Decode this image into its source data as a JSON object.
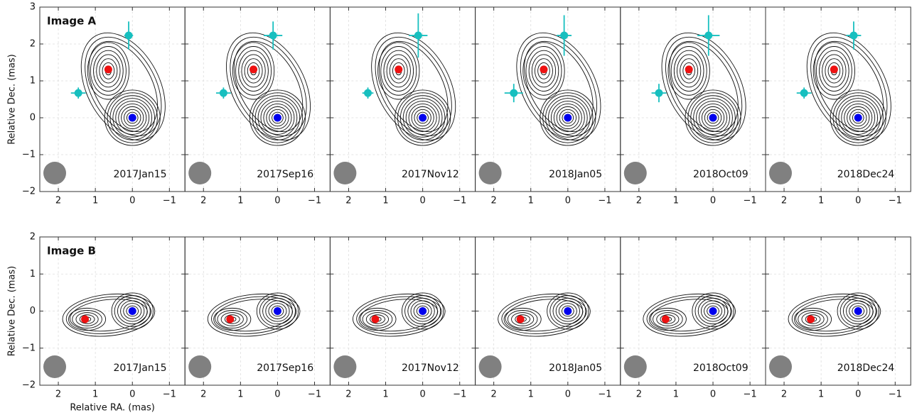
{
  "chart_data": [
    {
      "type": "scatter",
      "label": "Image A",
      "annotation": "2017Jan15",
      "ylabel": "Relative Dec. (mas)",
      "xlim": [
        2.5,
        -1.42
      ],
      "ylim": [
        -2,
        3
      ],
      "xticks": [
        2,
        1,
        0,
        {
          "value": -1,
          "label": "−1"
        }
      ],
      "yticks": [
        {
          "value": -2,
          "label": "−2"
        },
        {
          "value": -1,
          "label": "−1"
        },
        0,
        1,
        2,
        3
      ],
      "grid": true,
      "series": [
        {
          "color": "#ee1111",
          "x": [
            0.65
          ],
          "values": [
            1.31
          ]
        },
        {
          "color": "#0000ee",
          "x": [
            0
          ],
          "values": [
            0
          ]
        },
        {
          "color": "#17bfbf",
          "x": [
            0.1,
            1.46
          ],
          "values": [
            2.23,
            0.67
          ],
          "xerr": [
            0.12,
            0.2
          ],
          "yerr": [
            0.38,
            0.15
          ]
        }
      ]
    },
    {
      "type": "scatter",
      "annotation": "2017Sep16",
      "xlim": [
        2.5,
        -1.42
      ],
      "ylim": [
        -2,
        3
      ],
      "sharey": true,
      "xticks": [
        2,
        1,
        0,
        {
          "value": -1,
          "label": "−1"
        }
      ],
      "grid": true,
      "series": [
        {
          "color": "#ee1111",
          "x": [
            0.65
          ],
          "values": [
            1.31
          ]
        },
        {
          "color": "#0000ee",
          "x": [
            0
          ],
          "values": [
            0
          ]
        },
        {
          "color": "#17bfbf",
          "x": [
            0.12,
            1.46
          ],
          "values": [
            2.23,
            0.67
          ],
          "xerr": [
            0.25,
            0.2
          ],
          "yerr": [
            0.38,
            0.15
          ]
        }
      ]
    },
    {
      "type": "scatter",
      "annotation": "2017Nov12",
      "xlim": [
        2.5,
        -1.42
      ],
      "ylim": [
        -2,
        3
      ],
      "sharey": true,
      "xticks": [
        2,
        1,
        0,
        {
          "value": -1,
          "label": "−1"
        }
      ],
      "grid": true,
      "series": [
        {
          "color": "#ee1111",
          "x": [
            0.65
          ],
          "values": [
            1.31
          ]
        },
        {
          "color": "#0000ee",
          "x": [
            0
          ],
          "values": [
            0
          ]
        },
        {
          "color": "#17bfbf",
          "x": [
            0.12,
            1.48
          ],
          "values": [
            2.23,
            0.67
          ],
          "xerr": [
            0.25,
            0.15
          ],
          "yerr": [
            0.6,
            0.15
          ]
        }
      ]
    },
    {
      "type": "scatter",
      "annotation": "2018Jan05",
      "xlim": [
        2.5,
        -1.42
      ],
      "ylim": [
        -2,
        3
      ],
      "sharey": true,
      "xticks": [
        2,
        1,
        0,
        {
          "value": -1,
          "label": "−1"
        }
      ],
      "grid": true,
      "series": [
        {
          "color": "#ee1111",
          "x": [
            0.65
          ],
          "values": [
            1.31
          ]
        },
        {
          "color": "#0000ee",
          "x": [
            0
          ],
          "values": [
            0
          ]
        },
        {
          "color": "#17bfbf",
          "x": [
            0.1,
            1.46
          ],
          "values": [
            2.23,
            0.67
          ],
          "xerr": [
            0.2,
            0.25
          ],
          "yerr": [
            0.55,
            0.25
          ]
        }
      ]
    },
    {
      "type": "scatter",
      "annotation": "2018Oct09",
      "xlim": [
        2.5,
        -1.42
      ],
      "ylim": [
        -2,
        3
      ],
      "sharey": true,
      "xticks": [
        2,
        1,
        0,
        {
          "value": -1,
          "label": "−1"
        }
      ],
      "grid": true,
      "series": [
        {
          "color": "#ee1111",
          "x": [
            0.65
          ],
          "values": [
            1.31
          ]
        },
        {
          "color": "#0000ee",
          "x": [
            0
          ],
          "values": [
            0
          ]
        },
        {
          "color": "#17bfbf",
          "x": [
            0.12,
            1.46
          ],
          "values": [
            2.23,
            0.67
          ],
          "xerr": [
            0.3,
            0.2
          ],
          "yerr": [
            0.55,
            0.25
          ]
        }
      ]
    },
    {
      "type": "scatter",
      "annotation": "2018Dec24",
      "xlim": [
        2.5,
        -1.42
      ],
      "ylim": [
        -2,
        3
      ],
      "sharey": true,
      "xticks": [
        2,
        1,
        0,
        {
          "value": -1,
          "label": "−1"
        }
      ],
      "grid": true,
      "series": [
        {
          "color": "#ee1111",
          "x": [
            0.65
          ],
          "values": [
            1.31
          ]
        },
        {
          "color": "#0000ee",
          "x": [
            0
          ],
          "values": [
            0
          ]
        },
        {
          "color": "#17bfbf",
          "x": [
            0.12,
            1.46
          ],
          "values": [
            2.23,
            0.67
          ],
          "xerr": [
            0.2,
            0.2
          ],
          "yerr": [
            0.38,
            0.15
          ]
        }
      ]
    },
    {
      "type": "scatter",
      "label": "Image B",
      "annotation": "2017Jan15",
      "ylabel": "Relative Dec. (mas)",
      "xlabel": "Relative RA. (mas)",
      "xlim": [
        2.5,
        -1.42
      ],
      "ylim": [
        -2,
        2
      ],
      "xticks": [
        2,
        1,
        0,
        {
          "value": -1,
          "label": "−1"
        }
      ],
      "yticks": [
        {
          "value": -2,
          "label": "−2"
        },
        {
          "value": -1,
          "label": "−1"
        },
        0,
        1,
        2
      ],
      "grid": true,
      "series": [
        {
          "color": "#ee1111",
          "x": [
            1.28
          ],
          "values": [
            -0.22
          ]
        },
        {
          "color": "#0000ee",
          "x": [
            0
          ],
          "values": [
            0
          ]
        }
      ]
    },
    {
      "type": "scatter",
      "annotation": "2017Sep16",
      "xlim": [
        2.5,
        -1.42
      ],
      "ylim": [
        -2,
        2
      ],
      "sharey": true,
      "xticks": [
        2,
        1,
        0,
        {
          "value": -1,
          "label": "−1"
        }
      ],
      "grid": true,
      "series": [
        {
          "color": "#ee1111",
          "x": [
            1.28
          ],
          "values": [
            -0.22
          ]
        },
        {
          "color": "#0000ee",
          "x": [
            0
          ],
          "values": [
            0
          ]
        }
      ]
    },
    {
      "type": "scatter",
      "annotation": "2017Nov12",
      "xlim": [
        2.5,
        -1.42
      ],
      "ylim": [
        -2,
        2
      ],
      "sharey": true,
      "xticks": [
        2,
        1,
        0,
        {
          "value": -1,
          "label": "−1"
        }
      ],
      "grid": true,
      "series": [
        {
          "color": "#ee1111",
          "x": [
            1.28
          ],
          "values": [
            -0.22
          ]
        },
        {
          "color": "#0000ee",
          "x": [
            0
          ],
          "values": [
            0
          ]
        }
      ]
    },
    {
      "type": "scatter",
      "annotation": "2018Jan05",
      "xlim": [
        2.5,
        -1.42
      ],
      "ylim": [
        -2,
        2
      ],
      "sharey": true,
      "xticks": [
        2,
        1,
        0,
        {
          "value": -1,
          "label": "−1"
        }
      ],
      "grid": true,
      "series": [
        {
          "color": "#ee1111",
          "x": [
            1.28
          ],
          "values": [
            -0.22
          ]
        },
        {
          "color": "#0000ee",
          "x": [
            0
          ],
          "values": [
            0
          ]
        }
      ]
    },
    {
      "type": "scatter",
      "annotation": "2018Oct09",
      "xlim": [
        2.5,
        -1.42
      ],
      "ylim": [
        -2,
        2
      ],
      "sharey": true,
      "xticks": [
        2,
        1,
        0,
        {
          "value": -1,
          "label": "−1"
        }
      ],
      "grid": true,
      "series": [
        {
          "color": "#ee1111",
          "x": [
            1.28
          ],
          "values": [
            -0.22
          ]
        },
        {
          "color": "#0000ee",
          "x": [
            0
          ],
          "values": [
            0
          ]
        }
      ]
    },
    {
      "type": "scatter",
      "annotation": "2018Dec24",
      "xlim": [
        2.5,
        -1.42
      ],
      "ylim": [
        -2,
        2
      ],
      "sharey": true,
      "xticks": [
        2,
        1,
        0,
        {
          "value": -1,
          "label": "−1"
        }
      ],
      "grid": true,
      "series": [
        {
          "color": "#ee1111",
          "x": [
            1.28
          ],
          "values": [
            -0.22
          ]
        },
        {
          "color": "#0000ee",
          "x": [
            0
          ],
          "values": [
            0
          ]
        }
      ]
    }
  ]
}
